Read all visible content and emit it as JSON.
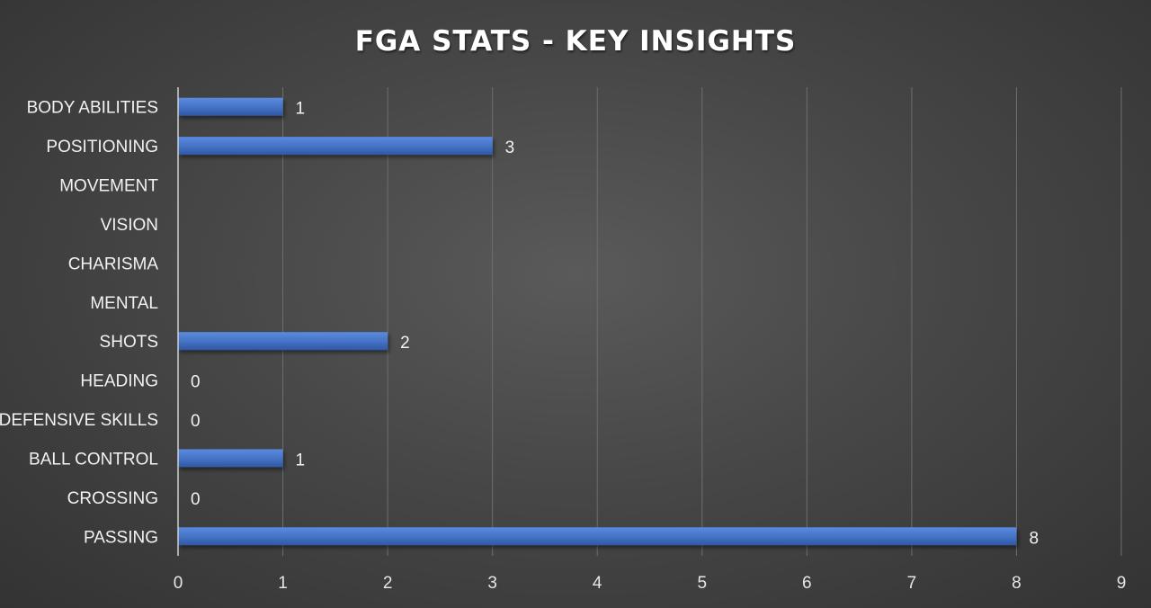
{
  "chart_data": {
    "type": "bar",
    "orientation": "horizontal",
    "title": "FGA STATS - KEY INSIGHTS",
    "categories": [
      "BODY ABILITIES",
      "POSITIONING",
      "MOVEMENT",
      "VISION",
      "CHARISMA",
      "MENTAL",
      "SHOTS",
      "HEADING",
      "DEFENSIVE SKILLS",
      "BALL CONTROL",
      "CROSSING",
      "PASSING"
    ],
    "values": [
      1,
      3,
      null,
      null,
      null,
      null,
      2,
      0,
      0,
      1,
      0,
      8
    ],
    "data_labels": [
      "1",
      "3",
      "",
      "",
      "",
      "",
      "2",
      "0",
      "0",
      "1",
      "0",
      "8"
    ],
    "xlim": [
      0,
      9
    ],
    "x_ticks": [
      "0",
      "1",
      "2",
      "3",
      "4",
      "5",
      "6",
      "7",
      "8",
      "9"
    ],
    "grid": "vertical",
    "legend": "none",
    "colors": {
      "bar": "#4472c4",
      "bar_highlight": "#5b8ae0",
      "bar_shade": "#2f57a3"
    }
  }
}
